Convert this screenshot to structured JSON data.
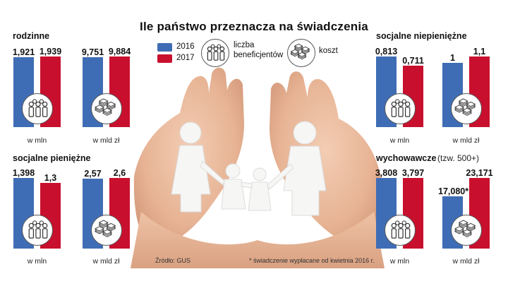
{
  "title": "Ile państwo przeznacza na świadczenia",
  "legend": {
    "items": [
      {
        "label": "2016",
        "color": "#3f6db5"
      },
      {
        "label": "2017",
        "color": "#c8102e"
      }
    ],
    "beneficiaries_label_1": "liczba",
    "beneficiaries_label_2": "beneficjentów",
    "beneficiaries_icon": "people-icon",
    "cost_label": "koszt",
    "cost_icon": "money-stack-icon"
  },
  "colors": {
    "y2016": "#3f6db5",
    "y2017": "#c8102e"
  },
  "footer": {
    "source": "Źródło: GUS",
    "note": "* świadczenie wypłacane od kwietnia 2016 r."
  },
  "chart_data": [
    {
      "type": "bar",
      "title": "rodzinne",
      "subtitle": "",
      "categories": [
        "2016",
        "2017"
      ],
      "values": [
        1.921,
        1.939
      ],
      "labels": [
        "1,921",
        "1,939"
      ],
      "unit": "w mln",
      "icon": "people-icon"
    },
    {
      "type": "bar",
      "title": "",
      "subtitle": "",
      "categories": [
        "2016",
        "2017"
      ],
      "values": [
        9.751,
        9.884
      ],
      "labels": [
        "9,751",
        "9,884"
      ],
      "unit": "w mld zł",
      "icon": "money-stack-icon"
    },
    {
      "type": "bar",
      "title": "socjalne pieniężne",
      "subtitle": "",
      "categories": [
        "2016",
        "2017"
      ],
      "values": [
        1.398,
        1.3
      ],
      "labels": [
        "1,398",
        "1,3"
      ],
      "unit": "w mln",
      "icon": "people-icon"
    },
    {
      "type": "bar",
      "title": "",
      "subtitle": "",
      "categories": [
        "2016",
        "2017"
      ],
      "values": [
        2.57,
        2.6
      ],
      "labels": [
        "2,57",
        "2,6"
      ],
      "unit": "w mld zł",
      "icon": "money-stack-icon"
    },
    {
      "type": "bar",
      "title": "socjalne niepieniężne",
      "subtitle": "",
      "categories": [
        "2016",
        "2017"
      ],
      "values": [
        0.813,
        0.711
      ],
      "labels": [
        "0,813",
        "0,711"
      ],
      "unit": "w mln",
      "icon": "people-icon"
    },
    {
      "type": "bar",
      "title": "",
      "subtitle": "",
      "categories": [
        "2016",
        "2017"
      ],
      "values": [
        1,
        1.1
      ],
      "labels": [
        "1",
        "1,1"
      ],
      "unit": "w mld zł",
      "icon": "money-stack-icon"
    },
    {
      "type": "bar",
      "title": "wychowawcze",
      "subtitle": "(tzw. 500+)",
      "categories": [
        "2016",
        "2017"
      ],
      "values": [
        3.808,
        3.797
      ],
      "labels": [
        "3,808",
        "3,797"
      ],
      "unit": "w mln",
      "icon": "people-icon"
    },
    {
      "type": "bar",
      "title": "",
      "subtitle": "",
      "categories": [
        "2016",
        "2017"
      ],
      "values": [
        17.08,
        23.171
      ],
      "labels": [
        "17,080*",
        "23,171"
      ],
      "unit": "w mld zł",
      "icon": "money-stack-icon"
    }
  ]
}
